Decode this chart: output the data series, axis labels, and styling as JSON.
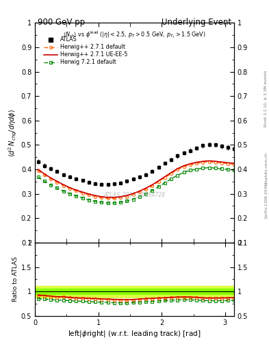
{
  "title_left": "900 GeV pp",
  "title_right": "Underlying Event",
  "ylabel_main": "$\\langle d^2 N_{chg}/d\\eta d\\phi\\rangle$",
  "ylabel_ratio": "Ratio to ATLAS",
  "xlabel": "left|$\\phi$right| (w.r.t. leading track) [rad]",
  "right_label_1": "Rivet 3.1.10, ≥ 3.3M events",
  "right_label_2": "mcplots.cern.ch",
  "right_label_3": "[arXiv:1306.3436]",
  "watermark": "ATLAS_2010_S8894728",
  "ylim_main": [
    0.1,
    1.0
  ],
  "ylim_ratio": [
    0.5,
    2.0
  ],
  "xlim": [
    0.0,
    3.14159265
  ],
  "atlas_x": [
    0.05,
    0.15,
    0.25,
    0.35,
    0.45,
    0.55,
    0.65,
    0.75,
    0.85,
    0.95,
    1.05,
    1.15,
    1.25,
    1.35,
    1.45,
    1.55,
    1.65,
    1.75,
    1.85,
    1.95,
    2.05,
    2.15,
    2.25,
    2.35,
    2.45,
    2.55,
    2.65,
    2.75,
    2.85,
    2.95,
    3.05,
    3.141
  ],
  "atlas_y": [
    0.432,
    0.415,
    0.403,
    0.393,
    0.378,
    0.37,
    0.362,
    0.354,
    0.347,
    0.342,
    0.339,
    0.337,
    0.34,
    0.345,
    0.352,
    0.36,
    0.368,
    0.378,
    0.392,
    0.408,
    0.424,
    0.44,
    0.455,
    0.467,
    0.477,
    0.487,
    0.497,
    0.502,
    0.5,
    0.495,
    0.49,
    0.485
  ],
  "atlas_yerr": [
    0.01,
    0.009,
    0.008,
    0.008,
    0.007,
    0.007,
    0.007,
    0.007,
    0.007,
    0.007,
    0.007,
    0.007,
    0.007,
    0.007,
    0.007,
    0.007,
    0.007,
    0.007,
    0.007,
    0.008,
    0.008,
    0.008,
    0.009,
    0.009,
    0.009,
    0.009,
    0.01,
    0.01,
    0.01,
    0.01,
    0.01,
    0.01
  ],
  "hw271_y": [
    0.395,
    0.377,
    0.361,
    0.347,
    0.334,
    0.322,
    0.312,
    0.303,
    0.295,
    0.289,
    0.284,
    0.281,
    0.281,
    0.284,
    0.289,
    0.297,
    0.307,
    0.319,
    0.333,
    0.349,
    0.366,
    0.383,
    0.399,
    0.411,
    0.419,
    0.425,
    0.429,
    0.431,
    0.429,
    0.426,
    0.423,
    0.421
  ],
  "hw271ue_y": [
    0.4,
    0.381,
    0.365,
    0.351,
    0.337,
    0.325,
    0.315,
    0.307,
    0.299,
    0.293,
    0.288,
    0.285,
    0.285,
    0.288,
    0.293,
    0.301,
    0.311,
    0.323,
    0.337,
    0.353,
    0.37,
    0.387,
    0.403,
    0.415,
    0.423,
    0.429,
    0.433,
    0.435,
    0.433,
    0.43,
    0.427,
    0.425
  ],
  "hw721_y": [
    0.368,
    0.351,
    0.336,
    0.323,
    0.311,
    0.3,
    0.291,
    0.283,
    0.275,
    0.269,
    0.265,
    0.262,
    0.262,
    0.265,
    0.27,
    0.278,
    0.288,
    0.3,
    0.313,
    0.329,
    0.345,
    0.361,
    0.376,
    0.388,
    0.396,
    0.401,
    0.405,
    0.407,
    0.405,
    0.402,
    0.399,
    0.397
  ],
  "atlas_color": "#000000",
  "hw271_color": "#FF6600",
  "hw271ue_color": "#CC0000",
  "hw721_color": "#008800",
  "ratio_band_outer_color": "#DDFF44",
  "ratio_band_inner_color": "#88FF00",
  "bg_color": "#ffffff",
  "grid_color": "#cccccc",
  "watermark_color": "#bbbbbb",
  "right_text_color": "#777777"
}
